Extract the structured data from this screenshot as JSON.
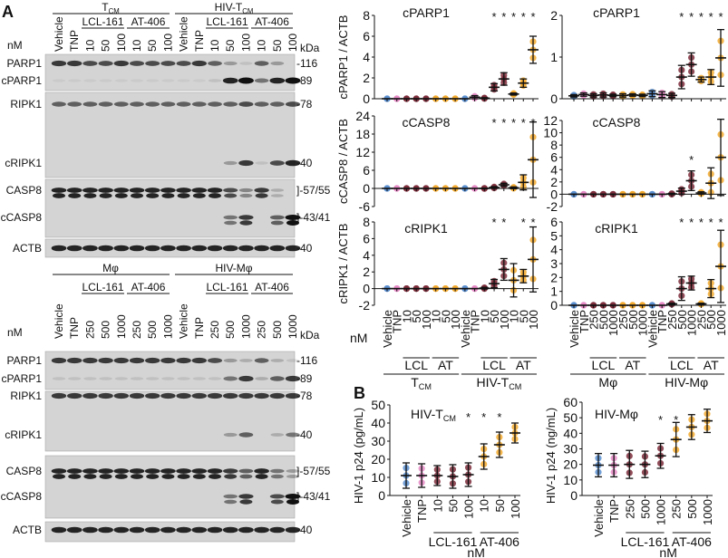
{
  "panel_labels": {
    "a": "A",
    "b": "B"
  },
  "blots": [
    {
      "group_labels": [
        {
          "main": "T",
          "sub": "CM"
        },
        {
          "main": "HIV-T",
          "sub": "CM"
        }
      ],
      "drug_labels": [
        "LCL-161",
        "AT-406",
        "LCL-161",
        "AT-406"
      ],
      "unit": "nM",
      "kda_label": "kDa",
      "lanes": [
        "Vehicle",
        "TNP",
        "10",
        "50",
        "100",
        "10",
        "50",
        "100",
        "Vehicle",
        "TNP",
        "10",
        "50",
        "100",
        "10",
        "50",
        "100"
      ],
      "proteins": [
        "PARP1",
        "cPARP1",
        "RIPK1",
        "cRIPK1",
        "CASP8",
        "cCASP8",
        "ACTB"
      ],
      "markers": [
        "-116",
        "-89",
        "-78",
        "-40",
        "]-57/55",
        "]-43/41",
        "-40"
      ]
    },
    {
      "group_labels": [
        {
          "main": "Mφ",
          "sub": ""
        },
        {
          "main": "HIV-Mφ",
          "sub": ""
        }
      ],
      "drug_labels": [
        "LCL-161",
        "AT-406",
        "LCL-161",
        "AT-406"
      ],
      "unit": "nM",
      "kda_label": "kDa",
      "lanes": [
        "Vehicle",
        "TNP",
        "250",
        "500",
        "1000",
        "250",
        "500",
        "1000",
        "Vehicle",
        "TNP",
        "250",
        "500",
        "1000",
        "250",
        "500",
        "1000"
      ],
      "proteins": [
        "PARP1",
        "cPARP1",
        "RIPK1",
        "cRIPK1",
        "CASP8",
        "cCASP8",
        "ACTB"
      ],
      "markers": [
        "-116",
        "-89",
        "-78",
        "-40",
        "]-57/55",
        "]-43/41",
        "-40"
      ]
    }
  ],
  "colors": {
    "vehicle": "#5b8fd0",
    "tnp": "#e58ac6",
    "lcl": "#7e2e3c",
    "at": "#f2a92e"
  },
  "chart_data": [
    {
      "type": "scatter",
      "title": "cPARP1",
      "ylabel": "cPARP1 / ACTB",
      "ylim": [
        0,
        8
      ],
      "yticks": [
        0,
        2,
        4,
        6,
        8
      ],
      "categories": [
        "Vehicle",
        "TNP",
        "10",
        "50",
        "100",
        "10",
        "50",
        "100",
        "Vehicle",
        "TNP",
        "10",
        "50",
        "100",
        "10",
        "50",
        "100"
      ],
      "means": [
        0,
        0,
        0,
        0,
        0,
        0,
        0,
        0,
        0,
        0.15,
        0.05,
        1.1,
        1.9,
        0.45,
        1.5,
        4.7
      ],
      "sd": [
        0,
        0,
        0,
        0,
        0,
        0,
        0,
        0,
        0,
        0.15,
        0.05,
        0.35,
        0.6,
        0.1,
        0.4,
        1.3
      ],
      "significant": [
        11,
        12,
        13,
        14,
        15
      ]
    },
    {
      "type": "scatter",
      "title": "cPARP1",
      "ylabel": "",
      "ylim": [
        0,
        2
      ],
      "yticks": [
        0,
        1,
        2
      ],
      "categories": [
        "Vehicle",
        "TNP",
        "250",
        "500",
        "1000",
        "250",
        "500",
        "1000",
        "Vehicle",
        "TNP",
        "250",
        "500",
        "1000",
        "250",
        "500",
        "1000"
      ],
      "means": [
        0.07,
        0.1,
        0.08,
        0.09,
        0.08,
        0.08,
        0.09,
        0.08,
        0.12,
        0.1,
        0.08,
        0.52,
        0.82,
        0.46,
        0.52,
        0.98
      ],
      "sd": [
        0.03,
        0.04,
        0.04,
        0.05,
        0.03,
        0.04,
        0.03,
        0.03,
        0.07,
        0.07,
        0.05,
        0.28,
        0.28,
        0.06,
        0.18,
        0.68
      ],
      "significant": [
        11,
        12,
        13,
        14,
        15
      ]
    },
    {
      "type": "scatter",
      "title": "cCASP8",
      "ylabel": "cCASP8 / ACTB",
      "ylim": [
        -6,
        24
      ],
      "yticks": [
        -6,
        0,
        6,
        12,
        18,
        24
      ],
      "categories": [
        "Vehicle",
        "TNP",
        "10",
        "50",
        "100",
        "10",
        "50",
        "100",
        "Vehicle",
        "TNP",
        "10",
        "50",
        "100",
        "10",
        "50",
        "100"
      ],
      "means": [
        0,
        0,
        0,
        0,
        0,
        0,
        0,
        0,
        0,
        0,
        0,
        0.3,
        1.2,
        0.2,
        2,
        9.5
      ],
      "sd": [
        0,
        0,
        0,
        0,
        0,
        0,
        0,
        0,
        0,
        0,
        0.1,
        0.3,
        0.5,
        0.3,
        2.5,
        12.5
      ],
      "significant": [
        11,
        12,
        13,
        14,
        15
      ]
    },
    {
      "type": "scatter",
      "title": "cCASP8",
      "ylabel": "",
      "ylim": [
        -2,
        12
      ],
      "yticks": [
        -2,
        0,
        2,
        4,
        6,
        8,
        10,
        12
      ],
      "categories": [
        "Vehicle",
        "TNP",
        "250",
        "500",
        "1000",
        "250",
        "500",
        "1000",
        "Vehicle",
        "TNP",
        "250",
        "500",
        "1000",
        "250",
        "500",
        "1000"
      ],
      "means": [
        0,
        0,
        0,
        0,
        0,
        0,
        0,
        0,
        0,
        0,
        0.05,
        0.5,
        2.2,
        0.2,
        1.8,
        6.0
      ],
      "sd": [
        0,
        0,
        0,
        0,
        0,
        0,
        0,
        0,
        0,
        0,
        0.1,
        0.5,
        1.6,
        0.2,
        2.5,
        6.2
      ],
      "significant": [
        12
      ]
    },
    {
      "type": "scatter",
      "title": "cRIPK1",
      "ylabel": "cRIPK1 / ACTB",
      "ylim": [
        -2,
        8
      ],
      "yticks": [
        -2,
        0,
        2,
        4,
        6,
        8
      ],
      "categories": [
        "Vehicle",
        "TNP",
        "10",
        "50",
        "100",
        "10",
        "50",
        "100",
        "Vehicle",
        "TNP",
        "10",
        "50",
        "100",
        "10",
        "50",
        "100"
      ],
      "means": [
        0,
        0,
        0,
        0,
        0,
        0,
        0,
        0,
        0,
        0,
        0.05,
        0.6,
        2.3,
        1.0,
        1.5,
        3.5
      ],
      "sd": [
        0,
        0,
        0,
        0,
        0,
        0,
        0,
        0,
        0,
        0,
        0.1,
        0.5,
        1.3,
        2.0,
        0.8,
        3.9
      ],
      "significant": [
        11,
        12,
        14,
        15
      ]
    },
    {
      "type": "scatter",
      "title": "cRIPK1",
      "ylabel": "",
      "ylim": [
        0,
        6
      ],
      "yticks": [
        0,
        1,
        2,
        3,
        4,
        5,
        6
      ],
      "categories": [
        "Vehicle",
        "TNP",
        "250",
        "500",
        "1000",
        "250",
        "500",
        "1000",
        "Vehicle",
        "TNP",
        "250",
        "500",
        "1000",
        "250",
        "500",
        "1000"
      ],
      "means": [
        0,
        0,
        0,
        0,
        0,
        0,
        0,
        0,
        0,
        0,
        0.1,
        1.2,
        1.6,
        0.1,
        1.2,
        2.8
      ],
      "sd": [
        0,
        0,
        0,
        0,
        0,
        0,
        0,
        0,
        0,
        0,
        0.05,
        0.85,
        0.5,
        0.05,
        0.65,
        2.6
      ],
      "significant": [
        11,
        12,
        13,
        14,
        15
      ]
    },
    {
      "type": "scatter",
      "title": "HIV-T",
      "title_sub": "CM",
      "ylabel": "HIV-1 p24 (pg/mL)",
      "ylim": [
        0,
        50
      ],
      "yticks": [
        0,
        10,
        20,
        30,
        40,
        50
      ],
      "categories": [
        "Vehicle",
        "TNP",
        "10",
        "50",
        "100",
        "10",
        "50",
        "100"
      ],
      "means": [
        11,
        11,
        11,
        10.5,
        11.5,
        21.5,
        28,
        34.5
      ],
      "sd": [
        7,
        6.5,
        5.5,
        6.5,
        6.5,
        7,
        7,
        5.5
      ],
      "significant": [
        4,
        5,
        6
      ],
      "group_labels": [
        "LCL-161",
        "AT-406"
      ],
      "xlabel": "nM"
    },
    {
      "type": "scatter",
      "title": "HIV-Mφ",
      "title_sub": "",
      "ylabel": "HIV-1 p24 (ng/mL)",
      "ylim": [
        0,
        60
      ],
      "yticks": [
        0,
        10,
        20,
        30,
        40,
        50,
        60
      ],
      "categories": [
        "Vehicle",
        "TNP",
        "250",
        "500",
        "1000",
        "250",
        "500",
        "1000"
      ],
      "means": [
        19.5,
        19.5,
        20,
        20,
        25.5,
        36,
        44,
        48
      ],
      "sd": [
        7.5,
        7.5,
        9,
        8.5,
        8,
        11,
        8,
        7.5
      ],
      "significant": [
        4,
        5
      ],
      "group_labels": [
        "LCL-161",
        "AT-406"
      ],
      "xlabel": "nM"
    }
  ],
  "chart_axis_labels": {
    "unit": "nM",
    "left": {
      "drugs": [
        "LCL",
        "AT",
        "LCL",
        "AT"
      ],
      "groups": [
        {
          "main": "T",
          "sub": "CM"
        },
        {
          "main": "HIV-T",
          "sub": "CM"
        }
      ]
    },
    "right": {
      "drugs": [
        "LCL",
        "AT",
        "LCL",
        "AT"
      ],
      "groups": [
        {
          "main": "Mφ",
          "sub": ""
        },
        {
          "main": "HIV-Mφ",
          "sub": ""
        }
      ]
    }
  }
}
